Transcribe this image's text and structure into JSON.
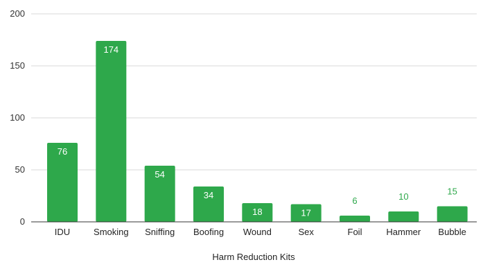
{
  "chart_data": {
    "type": "bar",
    "title": "",
    "xlabel": "Harm Reduction Kits",
    "ylabel": "",
    "categories": [
      "IDU",
      "Smoking",
      "Sniffing",
      "Boofing",
      "Wound",
      "Sex",
      "Foil",
      "Hammer",
      "Bubble"
    ],
    "values": [
      76,
      174,
      54,
      34,
      18,
      17,
      6,
      10,
      15
    ],
    "ylim": [
      0,
      200
    ],
    "yticks": [
      0,
      50,
      100,
      150,
      200
    ],
    "grid": true,
    "legend": "none",
    "colors": {
      "bar": "#2ea84b",
      "label_inside": "#ffffff",
      "label_outside": "#2ea84b",
      "grid": "#d9d9d9",
      "baseline": "#333333"
    }
  }
}
